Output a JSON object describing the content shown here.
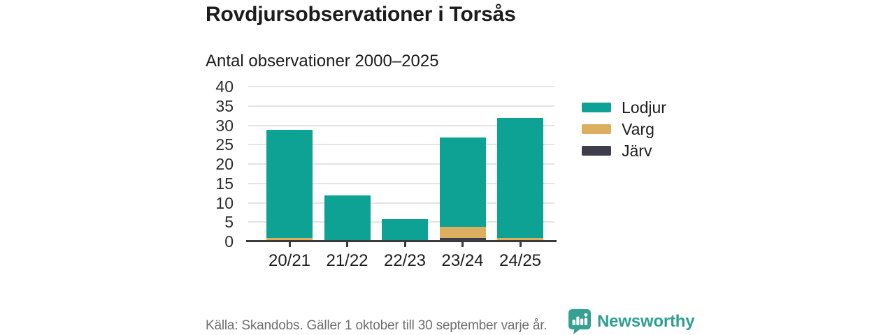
{
  "header": {
    "title": "Rovdjursobservationer i Torsås",
    "subtitle": "Antal observationer 2000–2025"
  },
  "chart_data": {
    "type": "bar",
    "stacked": true,
    "title": "Rovdjursobservationer i Torsås",
    "subtitle": "Antal observationer 2000–2025",
    "categories": [
      "20/21",
      "21/22",
      "22/23",
      "23/24",
      "24/25"
    ],
    "series": [
      {
        "name": "Lodjur",
        "color": "#0DA294",
        "values": [
          28,
          12,
          6,
          23,
          31
        ]
      },
      {
        "name": "Varg",
        "color": "#DBAE60",
        "values": [
          1,
          0,
          0,
          3,
          1
        ]
      },
      {
        "name": "Järv",
        "color": "#3E3D4B",
        "values": [
          0,
          0,
          0,
          1,
          0
        ]
      }
    ],
    "totals": [
      29,
      12,
      6,
      27,
      32
    ],
    "stack_order_bottom_to_top": [
      "Järv",
      "Varg",
      "Lodjur"
    ],
    "xlabel": "",
    "ylabel": "",
    "ylim": [
      0,
      40
    ],
    "yticks": [
      0,
      5,
      10,
      15,
      20,
      25,
      30,
      35,
      40
    ],
    "grid": true,
    "legend_position": "right"
  },
  "footer": {
    "source": "Källa: Skandobs. Gäller 1 oktober till 30 september varje år.",
    "brand": "Newsworthy"
  },
  "style": {
    "background": "#FFFFFF",
    "grid_color": "#E4E4E4",
    "axis_color": "#3A3A3A",
    "text_color": "#1D1D1D",
    "muted_text_color": "#6E6E6E",
    "brand_teal": "#34A193",
    "lodjur_teal": "#0DA294",
    "varg_gold": "#DBAE60",
    "jarv_dark": "#3E3D4B"
  }
}
